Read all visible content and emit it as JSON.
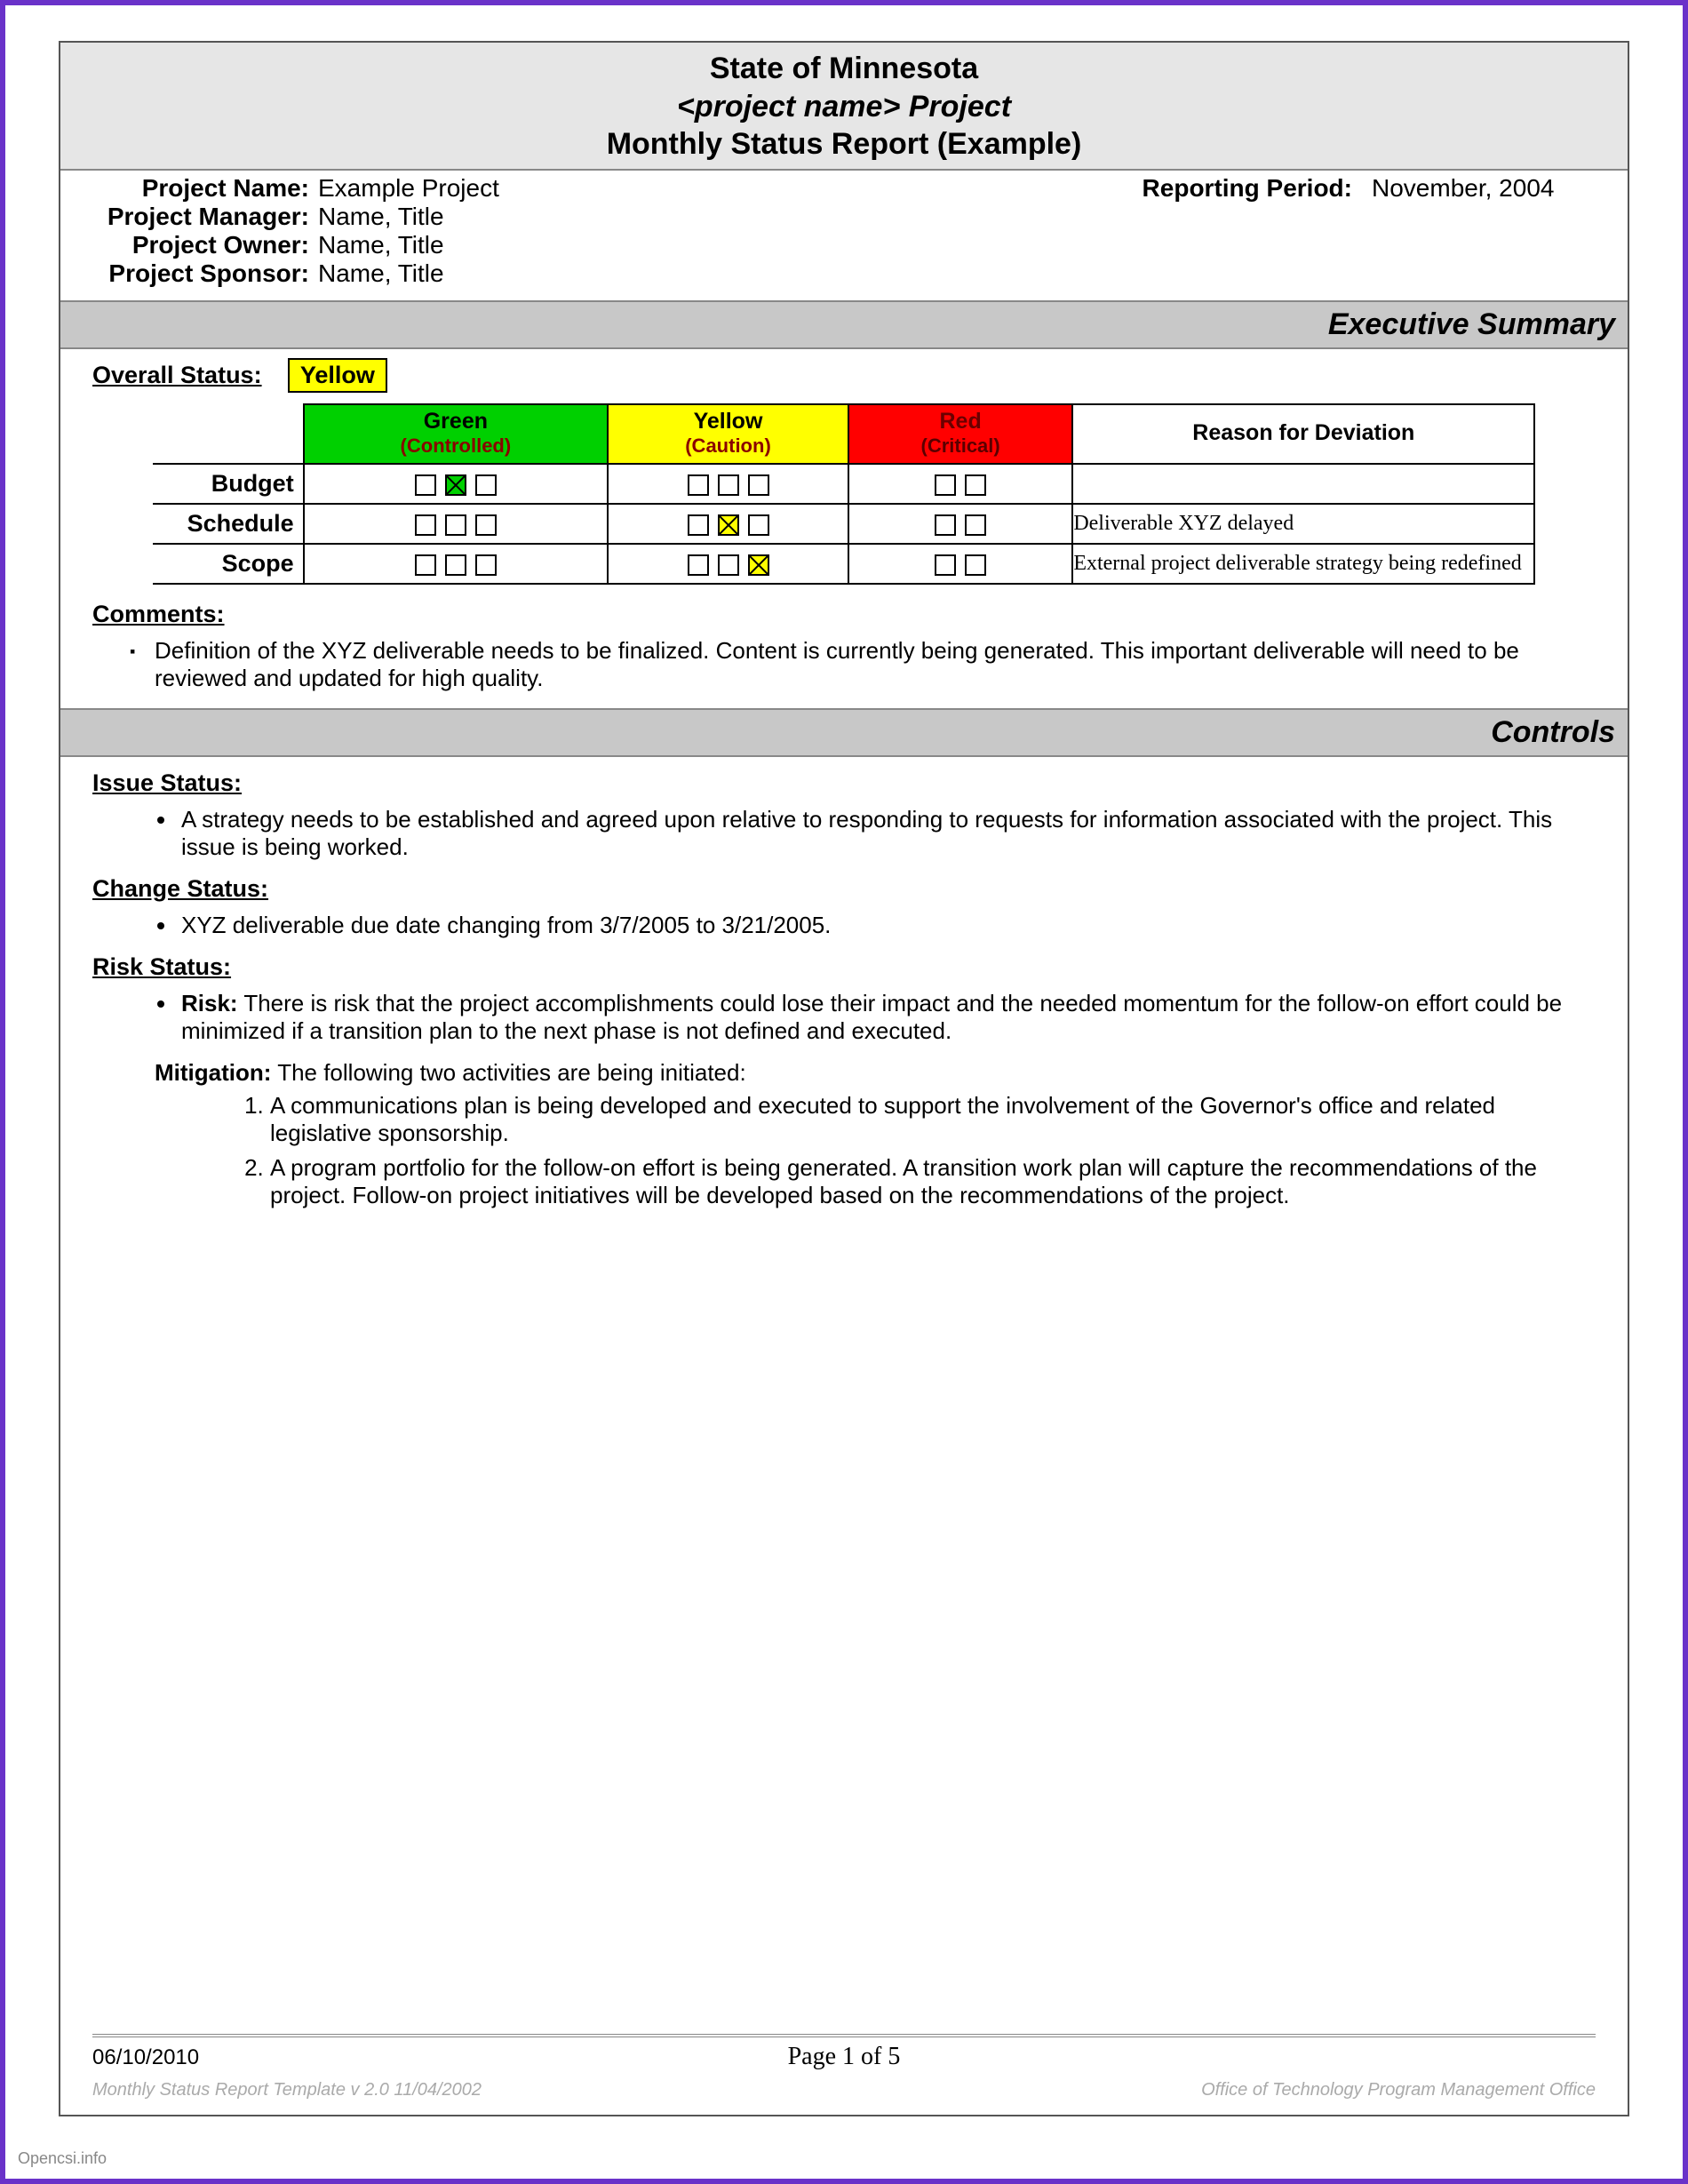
{
  "colors": {
    "frame": "#6a32c9",
    "band_bg": "#e6e6e6",
    "section_bg": "#c8c8c8",
    "green": "#00d000",
    "yellow": "#ffff00",
    "red": "#ff0000"
  },
  "header": {
    "line1": "State of Minnesota",
    "line2": "<project name> Project",
    "line3": "Monthly Status Report (Example)"
  },
  "meta": {
    "project_name_label": "Project Name:",
    "project_name": "Example Project",
    "reporting_period_label": "Reporting Period:",
    "reporting_period": "November, 2004",
    "project_manager_label": "Project Manager:",
    "project_manager": "Name, Title",
    "project_owner_label": "Project Owner:",
    "project_owner": "Name, Title",
    "project_sponsor_label": "Project Sponsor:",
    "project_sponsor": "Name, Title"
  },
  "sections": {
    "exec_summary": "Executive Summary",
    "controls": "Controls"
  },
  "overall": {
    "label": "Overall Status:",
    "value": "Yellow"
  },
  "status_table": {
    "columns": {
      "green": {
        "title": "Green",
        "sub": "(Controlled)"
      },
      "yellow": {
        "title": "Yellow",
        "sub": "(Caution)"
      },
      "red": {
        "title": "Red",
        "sub": "(Critical)"
      },
      "reason": "Reason for Deviation"
    },
    "rows": [
      {
        "label": "Budget",
        "green": [
          false,
          true,
          false
        ],
        "yellow": [
          false,
          false,
          false
        ],
        "red": [
          false,
          false
        ],
        "reason": ""
      },
      {
        "label": "Schedule",
        "green": [
          false,
          false,
          false
        ],
        "yellow": [
          false,
          true,
          false
        ],
        "red": [
          false,
          false
        ],
        "reason": "Deliverable XYZ delayed"
      },
      {
        "label": "Scope",
        "green": [
          false,
          false,
          false
        ],
        "yellow": [
          false,
          false,
          true
        ],
        "red": [
          false,
          false
        ],
        "reason": "External project deliverable strategy being redefined"
      }
    ]
  },
  "comments": {
    "heading": "Comments:",
    "items": [
      "Definition of the XYZ deliverable needs to be finalized.  Content is currently being generated.  This important deliverable will need to be reviewed and updated for high quality."
    ]
  },
  "issue": {
    "heading": "Issue Status:",
    "items": [
      "A strategy needs to be established and agreed upon relative to responding to requests for information associated with the project.  This issue is being worked."
    ]
  },
  "change": {
    "heading": "Change Status:",
    "items": [
      "XYZ deliverable due date changing from 3/7/2005 to 3/21/2005."
    ]
  },
  "risk": {
    "heading": "Risk Status:",
    "risk_label": "Risk:",
    "risk_text": "There is risk that the project accomplishments could lose their impact and the needed momentum for the follow-on effort could be minimized if a transition plan to the next phase is not defined and executed.",
    "mitigation_label": "Mitigation:",
    "mitigation_intro": "The following two activities are being initiated:",
    "mitigation_items": [
      "A communications plan is being developed and executed to support the involvement of the Governor's office and related legislative sponsorship.",
      "A program portfolio for the follow-on effort is being generated. A transition work plan will capture the recommendations of the project. Follow-on project initiatives will be developed based on the recommendations of the project."
    ]
  },
  "footer": {
    "date": "06/10/2010",
    "page": "Page 1 of 5",
    "template": "Monthly Status Report Template  v 2.0  11/04/2002",
    "office": "Office of Technology Program Management Office"
  },
  "watermark": "Opencsi.info"
}
